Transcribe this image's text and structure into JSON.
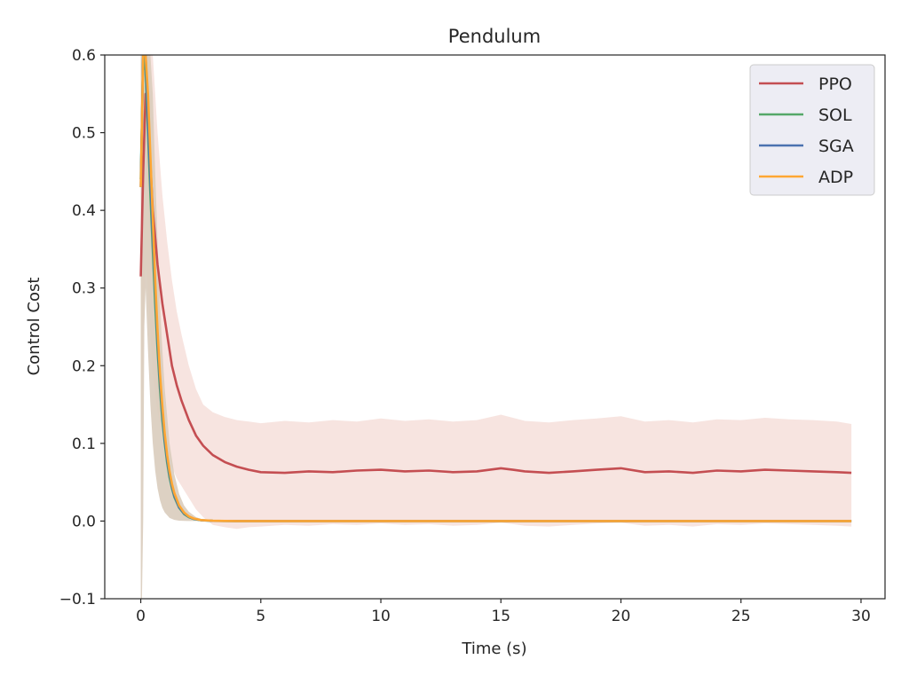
{
  "chart_data": {
    "type": "line",
    "title": "Pendulum",
    "xlabel": "Time (s)",
    "ylabel": "Control Cost",
    "xlim": [
      -1.5,
      31.0
    ],
    "ylim": [
      -0.1,
      0.6
    ],
    "xticks": [
      0,
      5,
      10,
      15,
      20,
      25,
      30
    ],
    "yticks": [
      -0.1,
      0.0,
      0.1,
      0.2,
      0.3,
      0.4,
      0.5,
      0.6
    ],
    "ytick_labels": [
      "−0.1",
      "0.0",
      "0.1",
      "0.2",
      "0.3",
      "0.4",
      "0.5",
      "0.6"
    ],
    "grid": false,
    "legend": {
      "position": "top-right"
    },
    "series": [
      {
        "name": "PPO",
        "color": "#c44e52",
        "band_color": "#f2d2cc",
        "x": [
          0,
          0.1,
          0.2,
          0.3,
          0.4,
          0.5,
          0.7,
          0.9,
          1.1,
          1.3,
          1.5,
          1.7,
          2.0,
          2.3,
          2.6,
          3.0,
          3.5,
          4.0,
          4.5,
          5.0,
          6.0,
          7.0,
          8.0,
          9.0,
          10.0,
          11.0,
          12.0,
          13.0,
          14.0,
          15.0,
          15.5,
          16.0,
          17.0,
          18.0,
          19.0,
          20.0,
          21.0,
          22.0,
          23.0,
          24.0,
          25.0,
          26.0,
          27.0,
          28.0,
          29.0,
          29.6
        ],
        "y": [
          0.315,
          0.45,
          0.55,
          0.52,
          0.46,
          0.4,
          0.33,
          0.28,
          0.24,
          0.2,
          0.175,
          0.155,
          0.13,
          0.11,
          0.097,
          0.085,
          0.076,
          0.07,
          0.066,
          0.063,
          0.062,
          0.064,
          0.063,
          0.065,
          0.066,
          0.064,
          0.065,
          0.063,
          0.064,
          0.068,
          0.066,
          0.064,
          0.062,
          0.064,
          0.066,
          0.068,
          0.063,
          0.064,
          0.062,
          0.065,
          0.064,
          0.066,
          0.065,
          0.064,
          0.063,
          0.062
        ],
        "upper": [
          0.6,
          0.6,
          0.6,
          0.6,
          0.6,
          0.6,
          0.5,
          0.42,
          0.36,
          0.31,
          0.27,
          0.24,
          0.2,
          0.17,
          0.15,
          0.14,
          0.134,
          0.13,
          0.128,
          0.126,
          0.129,
          0.127,
          0.13,
          0.128,
          0.132,
          0.129,
          0.131,
          0.128,
          0.13,
          0.137,
          0.133,
          0.129,
          0.127,
          0.13,
          0.132,
          0.135,
          0.128,
          0.13,
          0.127,
          0.131,
          0.13,
          0.133,
          0.131,
          0.13,
          0.128,
          0.125
        ],
        "lower": [
          0.1,
          0.22,
          0.33,
          0.3,
          0.24,
          0.19,
          0.14,
          0.11,
          0.09,
          0.07,
          0.055,
          0.045,
          0.03,
          0.015,
          0.005,
          -0.005,
          -0.008,
          -0.01,
          -0.008,
          -0.007,
          -0.005,
          -0.006,
          -0.004,
          -0.005,
          -0.003,
          -0.005,
          -0.004,
          -0.006,
          -0.005,
          -0.002,
          -0.004,
          -0.006,
          -0.007,
          -0.005,
          -0.003,
          -0.002,
          -0.006,
          -0.005,
          -0.007,
          -0.004,
          -0.005,
          -0.003,
          -0.004,
          -0.005,
          -0.006,
          -0.007
        ]
      },
      {
        "name": "SOL",
        "color": "#55a868",
        "x": [
          0,
          0.1,
          0.2,
          0.3,
          0.4,
          0.5,
          0.6,
          0.7,
          0.8,
          0.9,
          1.0,
          1.1,
          1.2,
          1.3,
          1.4,
          1.6,
          1.8,
          2.0,
          2.2,
          2.5,
          3.0,
          3.5,
          4.0,
          6.0,
          10.0,
          15.0,
          20.0,
          25.0,
          29.6
        ],
        "y": [
          0.44,
          0.6,
          0.58,
          0.5,
          0.42,
          0.35,
          0.28,
          0.22,
          0.17,
          0.13,
          0.1,
          0.075,
          0.056,
          0.042,
          0.031,
          0.017,
          0.009,
          0.005,
          0.0027,
          0.0011,
          0.0003,
          0.0001,
          0.0,
          0.0,
          0.0,
          0.0,
          0.0,
          0.0,
          0.0
        ]
      },
      {
        "name": "SGA",
        "color": "#4c72b0",
        "x": [
          0,
          0.1,
          0.2,
          0.3,
          0.4,
          0.5,
          0.6,
          0.7,
          0.8,
          0.9,
          1.0,
          1.1,
          1.2,
          1.3,
          1.4,
          1.6,
          1.8,
          2.0,
          2.2,
          2.5,
          3.0,
          3.5,
          4.0,
          6.0,
          10.0,
          15.0,
          20.0,
          25.0,
          29.6
        ],
        "y": [
          0.43,
          0.6,
          0.6,
          0.52,
          0.44,
          0.37,
          0.3,
          0.235,
          0.18,
          0.14,
          0.105,
          0.08,
          0.06,
          0.045,
          0.033,
          0.018,
          0.01,
          0.0055,
          0.003,
          0.0012,
          0.0003,
          0.0001,
          0.0,
          0.0,
          0.0,
          0.0,
          0.0,
          0.0,
          0.0
        ]
      },
      {
        "name": "ADP",
        "color": "#ffa733",
        "x": [
          0,
          0.1,
          0.2,
          0.3,
          0.4,
          0.5,
          0.6,
          0.7,
          0.8,
          0.9,
          1.0,
          1.1,
          1.2,
          1.3,
          1.4,
          1.6,
          1.8,
          2.0,
          2.2,
          2.5,
          3.0,
          3.5,
          4.0,
          6.0,
          10.0,
          15.0,
          20.0,
          25.0,
          29.6
        ],
        "y": [
          0.43,
          0.6,
          0.6,
          0.55,
          0.47,
          0.39,
          0.31,
          0.245,
          0.19,
          0.148,
          0.112,
          0.085,
          0.064,
          0.048,
          0.036,
          0.02,
          0.011,
          0.006,
          0.0033,
          0.0013,
          0.0004,
          0.0001,
          0.0,
          0.0,
          0.0,
          0.0,
          0.0,
          0.0,
          0.0
        ]
      }
    ],
    "shared_band": {
      "color": "#d9ccbd",
      "x": [
        0,
        0.05,
        0.1,
        0.15,
        0.2,
        0.3,
        0.4,
        0.5,
        0.6,
        0.7,
        0.8,
        0.9,
        1.0,
        1.2,
        1.4,
        1.6,
        1.8,
        2.0,
        2.3,
        2.6,
        3.0,
        29.6
      ],
      "upper": [
        0.6,
        0.6,
        0.6,
        0.6,
        0.6,
        0.6,
        0.6,
        0.55,
        0.45,
        0.36,
        0.28,
        0.22,
        0.17,
        0.1,
        0.06,
        0.035,
        0.02,
        0.012,
        0.005,
        0.002,
        0.0008,
        0.0005
      ],
      "lower": [
        -0.1,
        -0.1,
        0.0,
        0.25,
        0.3,
        0.22,
        0.15,
        0.1,
        0.065,
        0.042,
        0.027,
        0.017,
        0.011,
        0.004,
        0.0015,
        0.0005,
        0.0002,
        0.0,
        0.0,
        0.0,
        0.0,
        0.0
      ]
    }
  }
}
